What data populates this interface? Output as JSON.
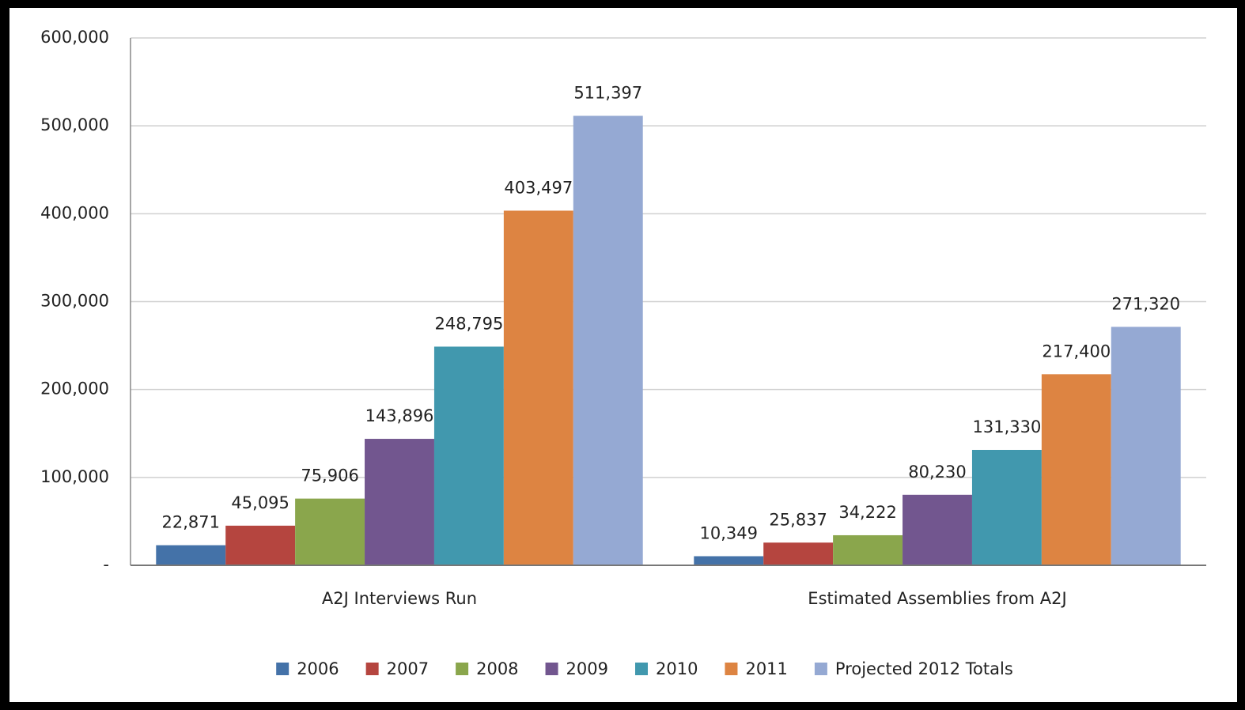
{
  "chart_data": {
    "type": "bar",
    "categories": [
      "A2J Interviews Run",
      "Estimated Assemblies from A2J"
    ],
    "series": [
      {
        "name": "2006",
        "color": "#4472a8",
        "values": [
          22871,
          10349
        ],
        "value_labels": [
          "22,871",
          "10,349"
        ]
      },
      {
        "name": "2007",
        "color": "#b5453f",
        "values": [
          45095,
          25837
        ],
        "value_labels": [
          "45,095",
          "25,837"
        ]
      },
      {
        "name": "2008",
        "color": "#8aa64c",
        "values": [
          75906,
          34222
        ],
        "value_labels": [
          "75,906",
          "34,222"
        ]
      },
      {
        "name": "2009",
        "color": "#72568f",
        "values": [
          143896,
          80230
        ],
        "value_labels": [
          "143,896",
          "80,230"
        ]
      },
      {
        "name": "2010",
        "color": "#4198ae",
        "values": [
          248795,
          131330
        ],
        "value_labels": [
          "248,795",
          "131,330"
        ]
      },
      {
        "name": "2011",
        "color": "#dd8442",
        "values": [
          403497,
          217400
        ],
        "value_labels": [
          "403,497",
          "217,400"
        ]
      },
      {
        "name": "Projected 2012 Totals",
        "color": "#95a9d3",
        "values": [
          511397,
          271320
        ],
        "value_labels": [
          "511,397",
          "271,320"
        ]
      }
    ],
    "ylim": [
      0,
      600000
    ],
    "yticks": [
      {
        "value": 0,
        "label": "-"
      },
      {
        "value": 100000,
        "label": "100,000"
      },
      {
        "value": 200000,
        "label": "200,000"
      },
      {
        "value": 300000,
        "label": "300,000"
      },
      {
        "value": 400000,
        "label": "400,000"
      },
      {
        "value": 500000,
        "label": "500,000"
      },
      {
        "value": 600000,
        "label": "600,000"
      }
    ],
    "grid": true,
    "legend": "bottom"
  }
}
